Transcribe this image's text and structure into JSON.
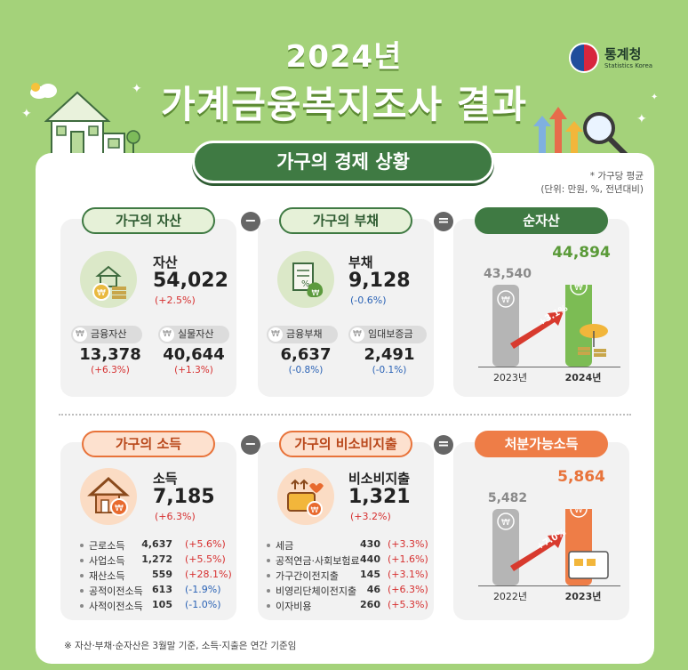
{
  "header": {
    "year": "2024년",
    "title": "가계금융복지조사 결과",
    "logo_ko": "통계청",
    "logo_en": "Statistics Korea"
  },
  "section": {
    "title": "가구의 경제 상황",
    "unit_line1": "* 가구당 평균",
    "unit_line2": "(단위: 만원, %, 전년대비)"
  },
  "assets": {
    "pill": "가구의 자산",
    "label": "자산",
    "value": "54,022",
    "change": "(+2.5%)",
    "subs": [
      {
        "label": "금융자산",
        "value": "13,378",
        "change": "(+6.3%)"
      },
      {
        "label": "실물자산",
        "value": "40,644",
        "change": "(+1.3%)"
      }
    ]
  },
  "debt": {
    "pill": "가구의 부채",
    "label": "부채",
    "value": "9,128",
    "change": "(-0.6%)",
    "subs": [
      {
        "label": "금융부채",
        "value": "6,637",
        "change": "(-0.8%)"
      },
      {
        "label": "임대보증금",
        "value": "2,491",
        "change": "(-0.1%)"
      }
    ]
  },
  "net_assets": {
    "pill": "순자산",
    "bars": [
      {
        "year": "2023년",
        "value": "43,540"
      },
      {
        "year": "2024년",
        "value": "44,894"
      }
    ],
    "growth": "+3.1%"
  },
  "income": {
    "pill": "가구의 소득",
    "label": "소득",
    "value": "7,185",
    "change": "(+6.3%)",
    "items": [
      {
        "label": "근로소득",
        "value": "4,637",
        "change": "(+5.6%)",
        "tone": "red"
      },
      {
        "label": "사업소득",
        "value": "1,272",
        "change": "(+5.5%)",
        "tone": "red"
      },
      {
        "label": "재산소득",
        "value": "559",
        "change": "(+28.1%)",
        "tone": "red"
      },
      {
        "label": "공적이전소득",
        "value": "613",
        "change": "(-1.9%)",
        "tone": "blue"
      },
      {
        "label": "사적이전소득",
        "value": "105",
        "change": "(-1.0%)",
        "tone": "blue"
      }
    ]
  },
  "nonconsumption": {
    "pill": "가구의 비소비지출",
    "label": "비소비지출",
    "value": "1,321",
    "change": "(+3.2%)",
    "items": [
      {
        "label": "세금",
        "value": "430",
        "change": "(+3.3%)",
        "tone": "red"
      },
      {
        "label": "공적연금·사회보험료",
        "value": "440",
        "change": "(+1.6%)",
        "tone": "red"
      },
      {
        "label": "가구간이전지출",
        "value": "145",
        "change": "(+3.1%)",
        "tone": "red"
      },
      {
        "label": "비영리단체이전지출",
        "value": "46",
        "change": "(+6.3%)",
        "tone": "red"
      },
      {
        "label": "이자비용",
        "value": "260",
        "change": "(+5.3%)",
        "tone": "red"
      }
    ]
  },
  "disposable": {
    "pill": "처분가능소득",
    "bars": [
      {
        "year": "2022년",
        "value": "5,482"
      },
      {
        "year": "2023년",
        "value": "5,864"
      }
    ],
    "growth": "+7.0%"
  },
  "operators": {
    "minus": "−",
    "equals": "="
  },
  "footnote": "※ 자산·부채·순자산은 3월말 기준, 소득·지출은 연간 기준임",
  "colors": {
    "background": "#a4d27a",
    "green": "#3f7a43",
    "orange": "#ee7d47",
    "red": "#d62f2f",
    "blue": "#2a62b5"
  }
}
